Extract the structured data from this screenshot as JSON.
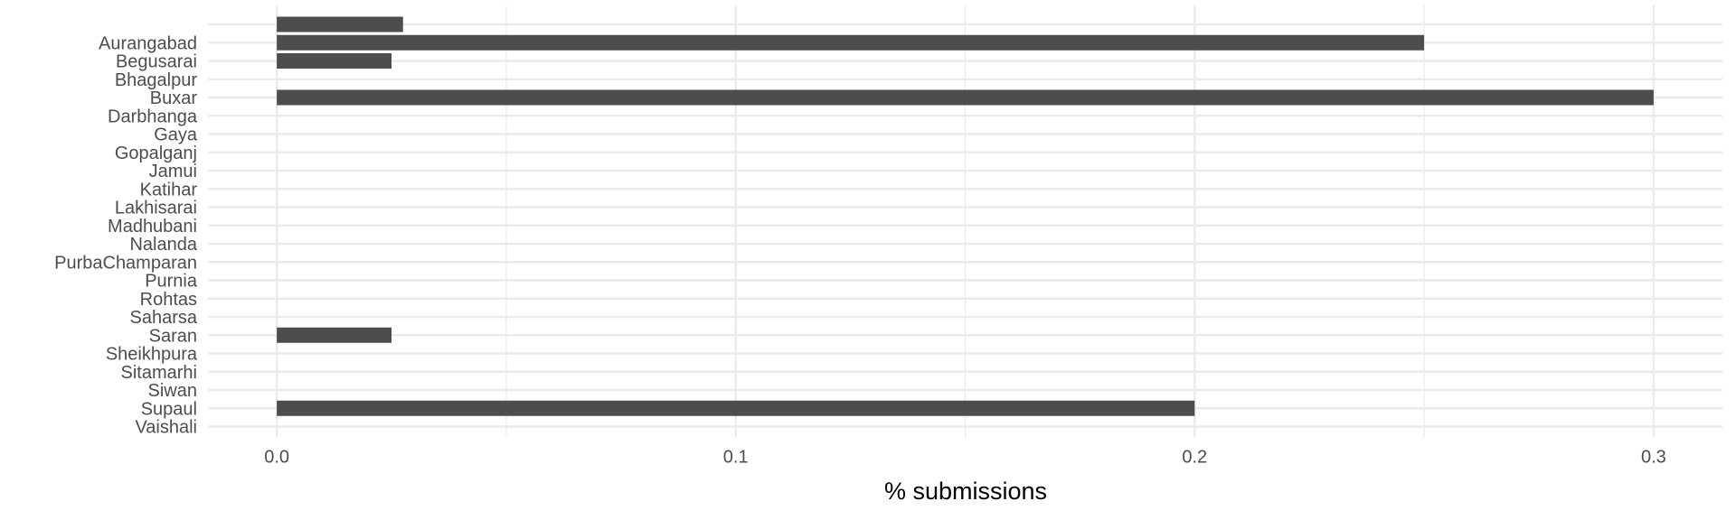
{
  "chart_data": {
    "type": "bar",
    "orientation": "horizontal",
    "title": "",
    "xlabel": "% submissions",
    "ylabel": "",
    "xlim": [
      -0.015,
      0.315
    ],
    "x_ticks": [
      0.0,
      0.1,
      0.2,
      0.3
    ],
    "x_tick_labels": [
      "0.0",
      "0.1",
      "0.2",
      "0.3"
    ],
    "grid": true,
    "legend": "none",
    "bar_color": "#4d4d4d",
    "grid_color": "#ebebeb",
    "categories": [
      "",
      "Aurangabad",
      "Begusarai",
      "Bhagalpur",
      "Buxar",
      "Darbhanga",
      "Gaya",
      "Gopalganj",
      "Jamui",
      "Katihar",
      "Lakhisarai",
      "Madhubani",
      "Nalanda",
      "PurbaChamparan",
      "Purnia",
      "Rohtas",
      "Saharsa",
      "Saran",
      "Sheikhpura",
      "Sitamarhi",
      "Siwan",
      "Supaul",
      "Vaishali"
    ],
    "values": [
      0.0275,
      0.25,
      0.025,
      0,
      0.3,
      0,
      0,
      0,
      0,
      0,
      0,
      0,
      0,
      0,
      0,
      0,
      0,
      0.025,
      0,
      0,
      0,
      0.2,
      0
    ]
  }
}
